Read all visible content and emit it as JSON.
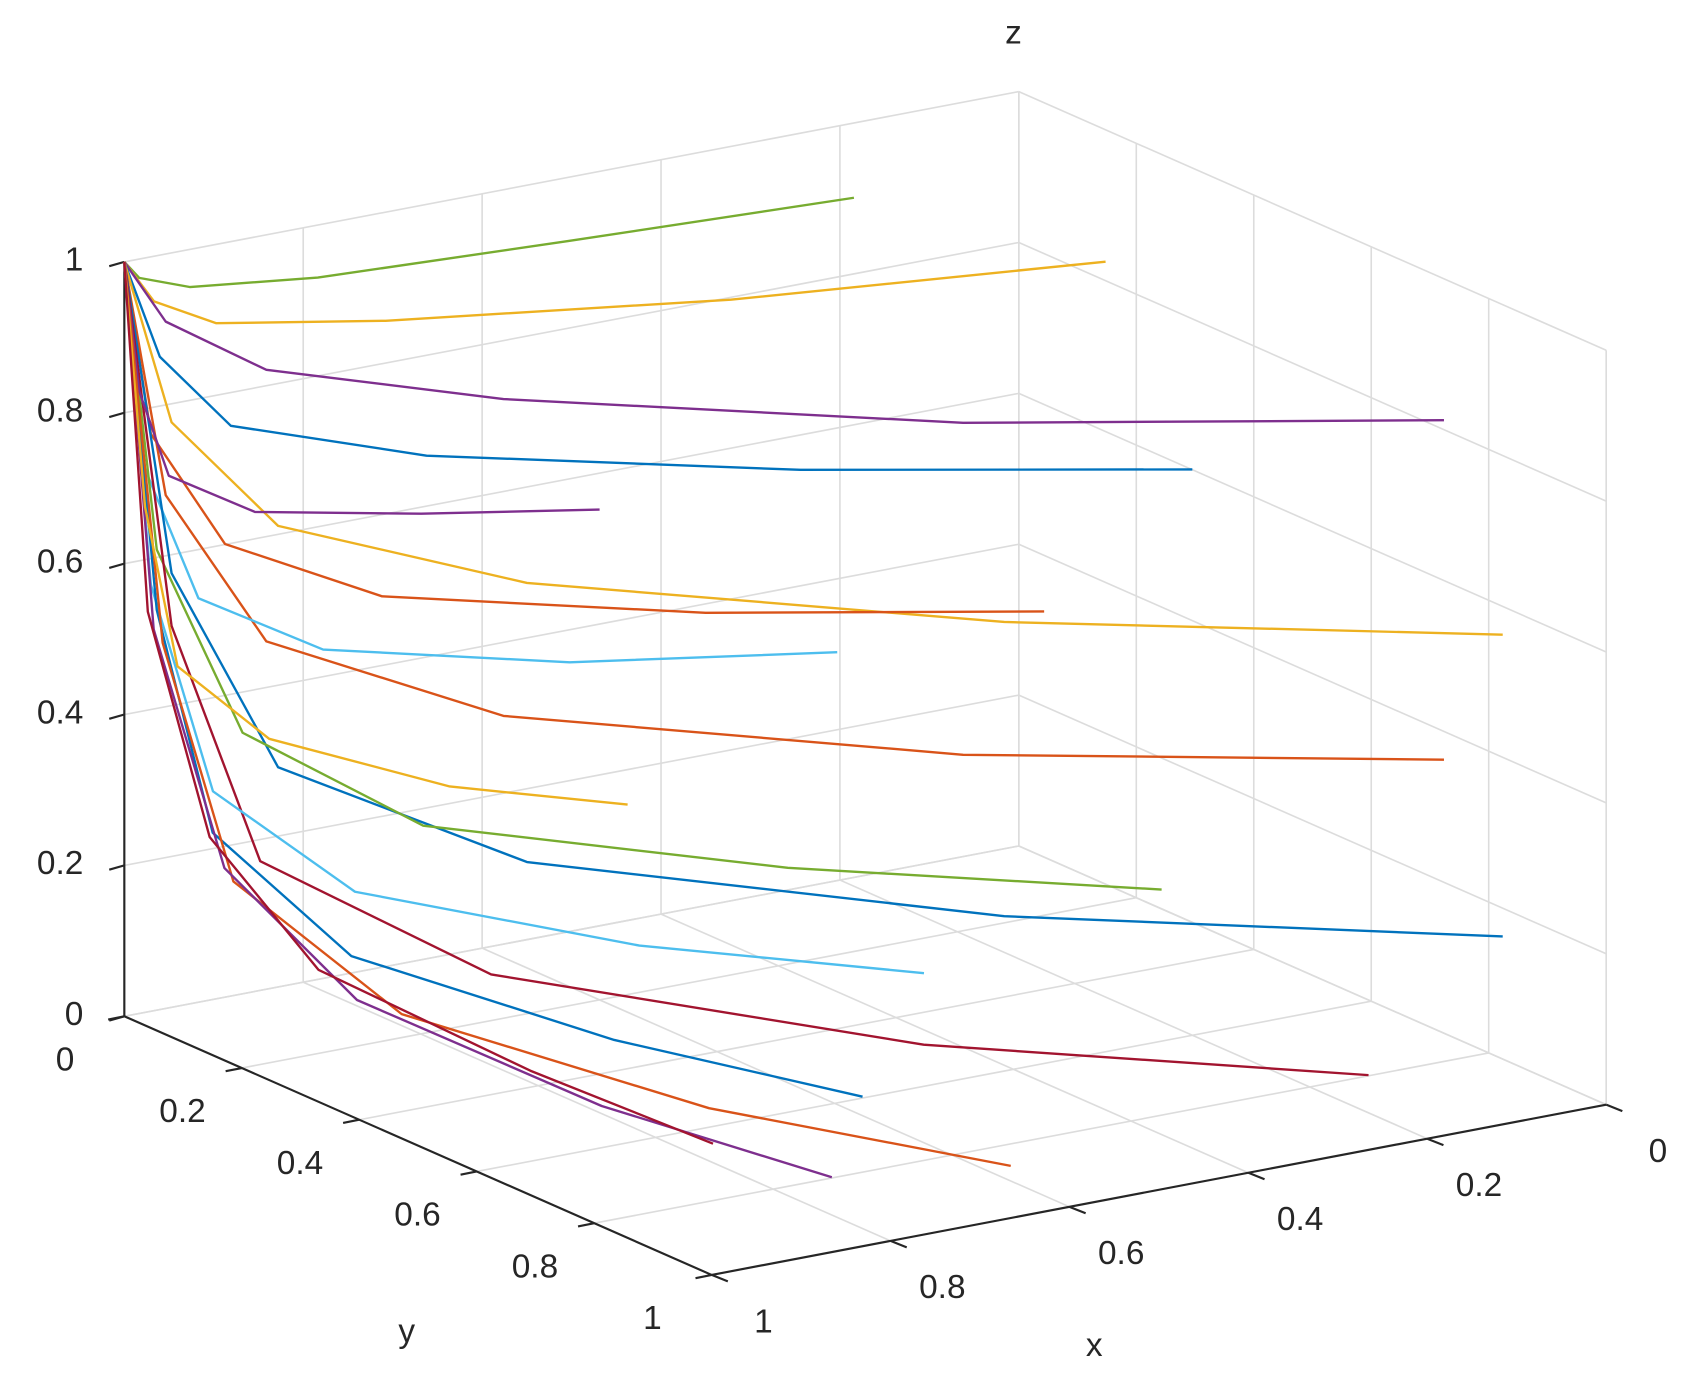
{
  "chart_data": {
    "type": "line3d",
    "xlabel": "x",
    "ylabel": "y",
    "zlabel": "z",
    "xlim": [
      0,
      1
    ],
    "ylim": [
      0,
      1
    ],
    "zlim": [
      0,
      1
    ],
    "xticks": [
      0,
      0.2,
      0.4,
      0.6,
      0.8,
      1
    ],
    "yticks": [
      0,
      0.2,
      0.4,
      0.6,
      0.8,
      1
    ],
    "zticks": [
      0,
      0.2,
      0.4,
      0.6,
      0.8,
      1
    ],
    "grid": true,
    "series": [
      {
        "color": "#77AC30",
        "x": [
          1,
          0.99,
          0.94,
          0.81,
          0.55,
          0.25
        ],
        "y": [
          0,
          0.01,
          0.02,
          0.04,
          0.07,
          0.1
        ],
        "z": [
          1,
          0.98,
          0.96,
          0.95,
          0.95,
          0.95
        ]
      },
      {
        "color": "#EDB120",
        "x": [
          1,
          0.98,
          0.93,
          0.78,
          0.46,
          0.1
        ],
        "y": [
          0,
          0.02,
          0.05,
          0.11,
          0.21,
          0.3
        ],
        "z": [
          1,
          0.95,
          0.92,
          0.91,
          0.9,
          0.9
        ]
      },
      {
        "color": "#7E2F8E",
        "x": [
          1,
          0.98,
          0.92,
          0.76,
          0.43,
          0.05
        ],
        "y": [
          0,
          0.04,
          0.12,
          0.28,
          0.56,
          0.8
        ],
        "z": [
          1,
          0.93,
          0.88,
          0.86,
          0.85,
          0.85
        ]
      },
      {
        "color": "#0072BD",
        "x": [
          1,
          0.98,
          0.94,
          0.8,
          0.52,
          0.2
        ],
        "y": [
          0,
          0.03,
          0.09,
          0.21,
          0.42,
          0.6
        ],
        "z": [
          1,
          0.88,
          0.8,
          0.77,
          0.76,
          0.75
        ]
      },
      {
        "color": "#EDB120",
        "x": [
          1,
          0.98,
          0.92,
          0.76,
          0.43,
          0.05
        ],
        "y": [
          0,
          0.05,
          0.14,
          0.32,
          0.63,
          0.9
        ],
        "z": [
          1,
          0.8,
          0.68,
          0.63,
          0.61,
          0.6
        ]
      },
      {
        "color": "#D95319",
        "x": [
          1,
          0.99,
          0.94,
          0.83,
          0.58,
          0.3
        ],
        "y": [
          0,
          0.03,
          0.08,
          0.18,
          0.35,
          0.5
        ],
        "z": [
          1,
          0.78,
          0.64,
          0.58,
          0.56,
          0.55
        ]
      },
      {
        "color": "#D95319",
        "x": [
          1,
          0.98,
          0.92,
          0.76,
          0.43,
          0.05
        ],
        "y": [
          0,
          0.04,
          0.12,
          0.28,
          0.56,
          0.8
        ],
        "z": [
          1,
          0.7,
          0.52,
          0.44,
          0.41,
          0.4
        ]
      },
      {
        "color": "#4DBEEE",
        "x": [
          1,
          0.99,
          0.95,
          0.85,
          0.64,
          0.4
        ],
        "y": [
          0,
          0.02,
          0.05,
          0.11,
          0.21,
          0.3
        ],
        "z": [
          1,
          0.73,
          0.56,
          0.49,
          0.46,
          0.45
        ]
      },
      {
        "color": "#0072BD",
        "x": [
          1,
          0.98,
          0.92,
          0.76,
          0.43,
          0.05
        ],
        "y": [
          0,
          0.05,
          0.14,
          0.32,
          0.63,
          0.9
        ],
        "z": [
          1,
          0.6,
          0.36,
          0.26,
          0.22,
          0.2
        ]
      },
      {
        "color": "#77AC30",
        "x": [
          1,
          0.99,
          0.94,
          0.83,
          0.58,
          0.3
        ],
        "y": [
          0,
          0.04,
          0.11,
          0.25,
          0.49,
          0.7
        ],
        "z": [
          1,
          0.63,
          0.4,
          0.3,
          0.27,
          0.25
        ]
      },
      {
        "color": "#A2142F",
        "x": [
          1,
          0.98,
          0.94,
          0.8,
          0.52,
          0.2
        ],
        "y": [
          0,
          0.05,
          0.14,
          0.32,
          0.63,
          0.9
        ],
        "z": [
          1,
          0.53,
          0.24,
          0.12,
          0.07,
          0.05
        ]
      },
      {
        "color": "#4DBEEE",
        "x": [
          1,
          0.99,
          0.96,
          0.88,
          0.7,
          0.5
        ],
        "y": [
          0,
          0.03,
          0.09,
          0.21,
          0.42,
          0.6
        ],
        "z": [
          1,
          0.58,
          0.32,
          0.21,
          0.17,
          0.15
        ]
      },
      {
        "color": "#7E2F8E",
        "x": [
          1,
          0.99,
          0.97,
          0.9,
          0.76,
          0.6
        ],
        "y": [
          0,
          0.01,
          0.03,
          0.07,
          0.14,
          0.2
        ],
        "z": [
          1,
          0.83,
          0.72,
          0.67,
          0.66,
          0.65
        ]
      },
      {
        "color": "#0072BD",
        "x": [
          1,
          0.99,
          0.98,
          0.93,
          0.82,
          0.7
        ],
        "y": [
          0,
          0.04,
          0.12,
          0.28,
          0.56,
          0.8
        ],
        "z": [
          1,
          0.55,
          0.28,
          0.16,
          0.12,
          0.1
        ]
      },
      {
        "color": "#D95319",
        "x": [
          1,
          0.99,
          0.97,
          0.9,
          0.76,
          0.6
        ],
        "y": [
          0,
          0.05,
          0.14,
          0.32,
          0.63,
          0.9
        ],
        "z": [
          1,
          0.51,
          0.22,
          0.09,
          0.04,
          0.02
        ]
      },
      {
        "color": "#7E2F8E",
        "x": [
          1,
          1,
          0.98,
          0.95,
          0.88,
          0.8
        ],
        "y": [
          0,
          0.05,
          0.14,
          0.32,
          0.63,
          0.9
        ],
        "z": [
          1,
          0.53,
          0.24,
          0.12,
          0.07,
          0.05
        ]
      },
      {
        "color": "#EDB120",
        "x": [
          1,
          0.99,
          0.98,
          0.93,
          0.82,
          0.7
        ],
        "y": [
          0,
          0.02,
          0.06,
          0.14,
          0.28,
          0.4
        ],
        "z": [
          1,
          0.68,
          0.48,
          0.4,
          0.36,
          0.35
        ]
      },
      {
        "color": "#A2142F",
        "x": [
          1,
          1,
          0.99,
          0.98,
          0.94,
          0.9
        ],
        "y": [
          0,
          0.04,
          0.13,
          0.3,
          0.6,
          0.85
        ],
        "z": [
          1,
          0.55,
          0.28,
          0.16,
          0.12,
          0.1
        ]
      }
    ]
  }
}
